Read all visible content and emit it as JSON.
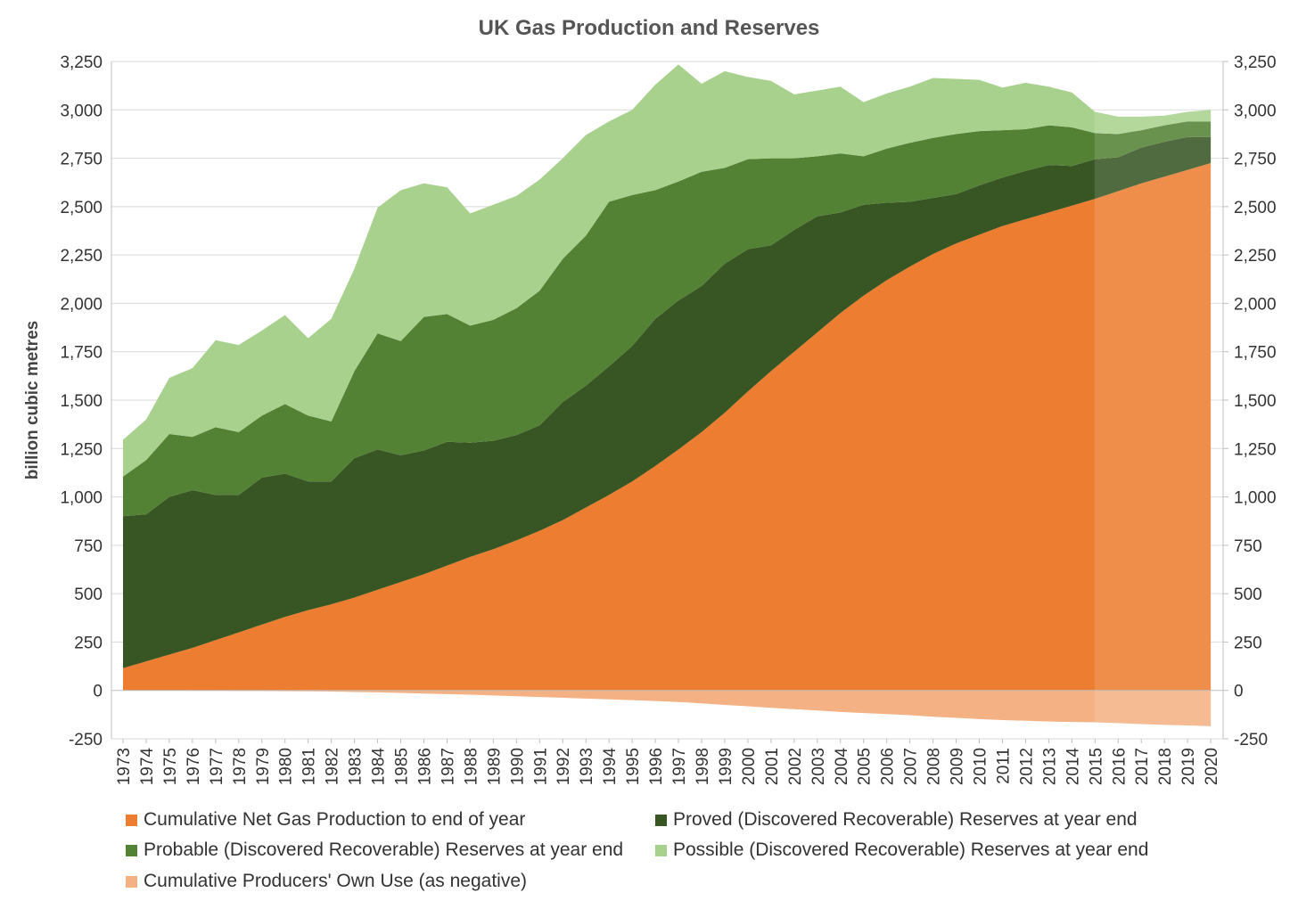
{
  "chart_data": {
    "type": "area",
    "title": "UK Gas Production and Reserves",
    "ylabel": "billion cubic metres",
    "xlabel": "",
    "stacked": true,
    "ylim": [
      -250,
      3250
    ],
    "yticks": [
      -250,
      0,
      250,
      500,
      750,
      1000,
      1250,
      1500,
      1750,
      2000,
      2250,
      2500,
      2750,
      3000,
      3250
    ],
    "ytick_labels": [
      "-250",
      "0",
      "250",
      "500",
      "750",
      "1,000",
      "1,250",
      "1,500",
      "1,750",
      "2,000",
      "2,250",
      "2,500",
      "2,750",
      "3,000",
      "3,250"
    ],
    "secondary_y_axis": true,
    "grid": true,
    "legend_position": "bottom",
    "highlight_from_year": "2015",
    "x": [
      "1973",
      "1974",
      "1975",
      "1976",
      "1977",
      "1978",
      "1979",
      "1980",
      "1981",
      "1982",
      "1983",
      "1984",
      "1985",
      "1986",
      "1987",
      "1988",
      "1989",
      "1990",
      "1991",
      "1992",
      "1993",
      "1994",
      "1995",
      "1996",
      "1997",
      "1998",
      "1999",
      "2000",
      "2001",
      "2002",
      "2003",
      "2004",
      "2005",
      "2006",
      "2007",
      "2008",
      "2009",
      "2010",
      "2011",
      "2012",
      "2013",
      "2014",
      "2015",
      "2016",
      "2017",
      "2018",
      "2019",
      "2020"
    ],
    "series": [
      {
        "name": "Cumulative Net Gas Production to end of year",
        "color": "#ED7D31",
        "values": [
          115,
          150,
          185,
          220,
          260,
          300,
          340,
          380,
          415,
          445,
          480,
          520,
          560,
          600,
          645,
          690,
          730,
          775,
          825,
          880,
          945,
          1010,
          1080,
          1160,
          1245,
          1335,
          1435,
          1545,
          1650,
          1750,
          1850,
          1950,
          2040,
          2120,
          2190,
          2255,
          2310,
          2355,
          2400,
          2435,
          2470,
          2505,
          2540,
          2580,
          2620,
          2655,
          2690,
          2725
        ]
      },
      {
        "name": "Proved (Discovered Recoverable) Reserves at year end",
        "color": "#375623",
        "values": [
          785,
          760,
          815,
          815,
          750,
          710,
          760,
          740,
          665,
          635,
          720,
          725,
          655,
          640,
          640,
          590,
          560,
          545,
          545,
          610,
          630,
          665,
          700,
          760,
          770,
          755,
          770,
          735,
          650,
          630,
          600,
          520,
          470,
          400,
          335,
          290,
          255,
          255,
          250,
          250,
          245,
          205,
          205,
          175,
          185,
          180,
          170,
          135
        ]
      },
      {
        "name": "Probable (Discovered Recoverable) Reserves at year end",
        "color": "#548235",
        "values": [
          205,
          280,
          325,
          275,
          350,
          325,
          320,
          360,
          340,
          310,
          450,
          600,
          590,
          690,
          660,
          605,
          625,
          655,
          695,
          740,
          775,
          850,
          780,
          665,
          615,
          590,
          495,
          465,
          450,
          370,
          310,
          305,
          250,
          280,
          305,
          310,
          310,
          280,
          245,
          215,
          205,
          200,
          135,
          120,
          90,
          85,
          80,
          80
        ]
      },
      {
        "name": "Possible (Discovered Recoverable) Reserves at year end",
        "color": "#A9D18E",
        "values": [
          190,
          210,
          290,
          355,
          450,
          450,
          440,
          460,
          400,
          530,
          530,
          650,
          780,
          690,
          655,
          580,
          595,
          580,
          575,
          520,
          520,
          415,
          440,
          545,
          605,
          455,
          500,
          425,
          400,
          330,
          340,
          345,
          280,
          285,
          290,
          310,
          285,
          265,
          220,
          240,
          200,
          180,
          110,
          90,
          70,
          50,
          50,
          60
        ]
      },
      {
        "name": "Cumulative Producers' Own Use (as negative)",
        "color": "#F4B183",
        "values": [
          -1,
          -1,
          -1,
          -2,
          -2,
          -3,
          -3,
          -4,
          -5,
          -6,
          -8,
          -10,
          -13,
          -16,
          -19,
          -22,
          -26,
          -30,
          -34,
          -38,
          -42,
          -46,
          -50,
          -55,
          -60,
          -67,
          -75,
          -82,
          -90,
          -97,
          -104,
          -111,
          -117,
          -122,
          -128,
          -136,
          -142,
          -148,
          -153,
          -157,
          -161,
          -163,
          -165,
          -169,
          -174,
          -178,
          -181,
          -185
        ]
      }
    ]
  }
}
